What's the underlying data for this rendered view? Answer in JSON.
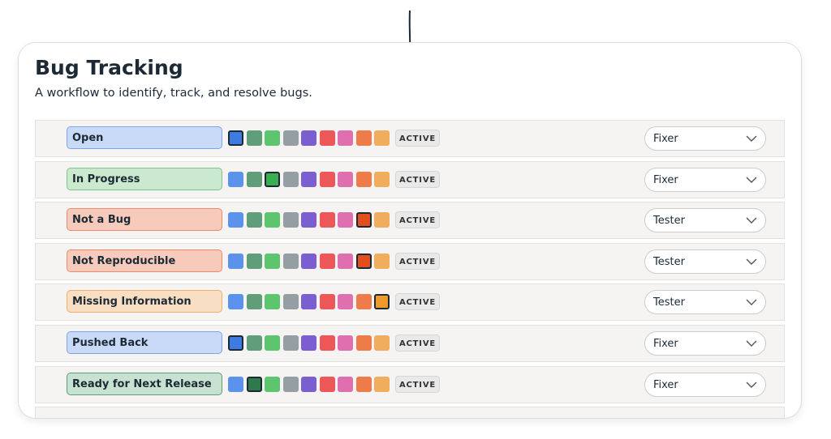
{
  "header": {
    "title": "Bug Tracking",
    "subtitle": "A workflow to identify, track, and resolve bugs."
  },
  "rows": [
    {
      "label": "Open",
      "status": "ACTIVE",
      "role": "Fixer"
    },
    {
      "label": "In Progress",
      "status": "ACTIVE",
      "role": "Fixer"
    },
    {
      "label": "Not a Bug",
      "status": "ACTIVE",
      "role": "Tester"
    },
    {
      "label": "Not Reproducible",
      "status": "ACTIVE",
      "role": "Tester"
    },
    {
      "label": "Missing Information",
      "status": "ACTIVE",
      "role": "Tester"
    },
    {
      "label": "Pushed Back",
      "status": "ACTIVE",
      "role": "Fixer"
    },
    {
      "label": "Ready for Next Release",
      "status": "ACTIVE",
      "role": "Fixer"
    }
  ]
}
